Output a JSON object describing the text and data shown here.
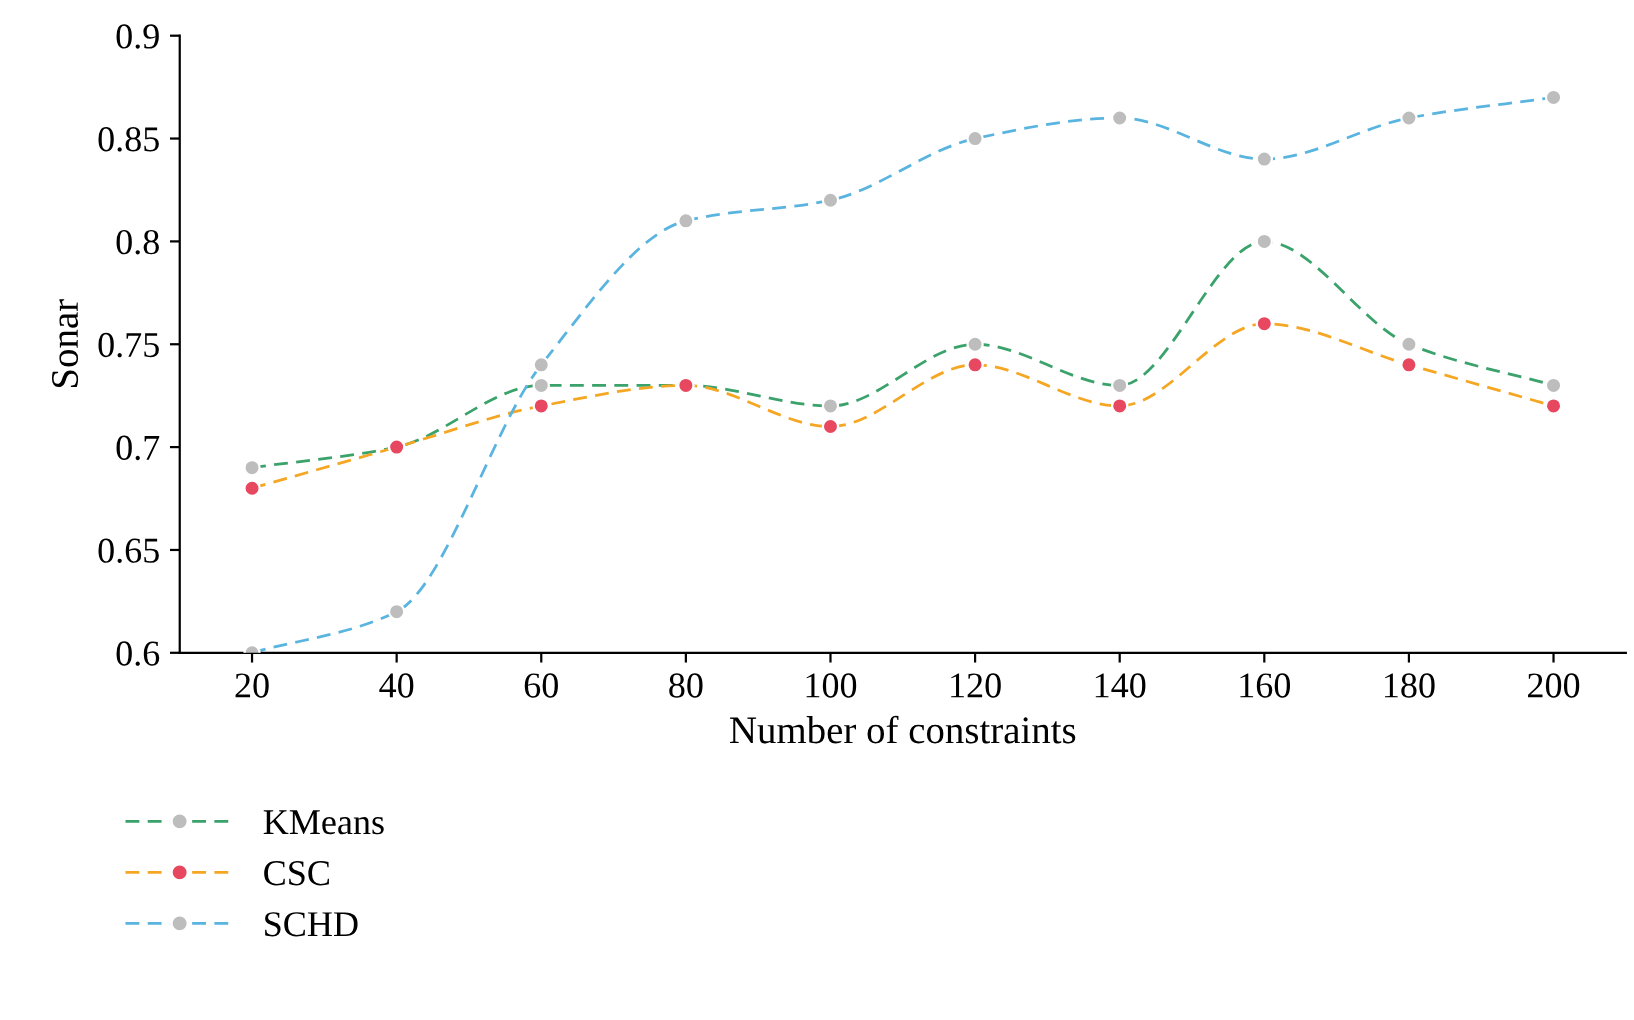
{
  "chart_data": {
    "type": "line",
    "xlabel": "Number of constraints",
    "ylabel": "Sonar",
    "x": [
      20,
      40,
      60,
      80,
      100,
      120,
      140,
      160,
      180,
      200
    ],
    "series": [
      {
        "name": "KMeans",
        "color": "#3aa26a",
        "colors": [
          "#bdbdbd",
          "#bdbdbd",
          "#bdbdbd",
          "#bdbdbd",
          "#bdbdbd",
          "#bdbdbd",
          "#bdbdbd",
          "#bdbdbd",
          "#bdbdbd",
          "#bdbdbd"
        ],
        "values": [
          0.69,
          0.7,
          0.73,
          0.73,
          0.72,
          0.75,
          0.73,
          0.8,
          0.75,
          0.73
        ]
      },
      {
        "name": "CSC",
        "color": "#f5a623",
        "colors": [
          "#e8485f",
          "#e8485f",
          "#e8485f",
          "#e8485f",
          "#e8485f",
          "#e8485f",
          "#e8485f",
          "#e8485f",
          "#e8485f",
          "#e8485f"
        ],
        "values": [
          0.68,
          0.7,
          0.72,
          0.73,
          0.71,
          0.74,
          0.72,
          0.76,
          0.74,
          0.72
        ]
      },
      {
        "name": "SCHD",
        "color": "#5ab4e0",
        "colors": [
          "#bdbdbd",
          "#bdbdbd",
          "#bdbdbd",
          "#bdbdbd",
          "#bdbdbd",
          "#bdbdbd",
          "#bdbdbd",
          "#bdbdbd",
          "#bdbdbd",
          "#bdbdbd"
        ],
        "values": [
          0.6,
          0.62,
          0.74,
          0.81,
          0.82,
          0.85,
          0.86,
          0.84,
          0.86,
          0.87
        ]
      }
    ],
    "xlim": [
      10,
      210
    ],
    "xticks": [
      20,
      40,
      60,
      80,
      100,
      120,
      140,
      160,
      180,
      200
    ],
    "ylim": [
      0.6,
      0.9
    ],
    "yticks": [
      0.6,
      0.65,
      0.7,
      0.75,
      0.8,
      0.85,
      0.9
    ],
    "marker": "circle",
    "line_style": "dashed",
    "grid": false,
    "legend": "bottom left"
  }
}
